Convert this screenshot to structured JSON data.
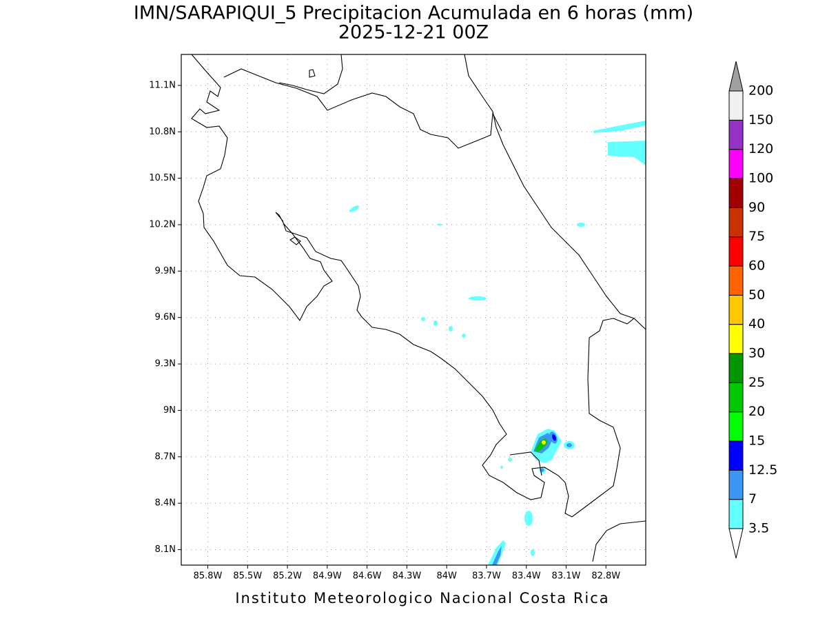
{
  "title": "IMN/SARAPIQUI_5 Precipitacion Acumulada en 6 horas (mm)",
  "subtitle": "2025-12-21 00Z",
  "footer": "Instituto Meteorologico Nacional Costa Rica",
  "map": {
    "lonlim": [
      -86.0,
      -82.5
    ],
    "latlim": [
      8.0,
      11.3
    ],
    "lon_ticks": [
      {
        "value": -85.8,
        "label": "85.8W"
      },
      {
        "value": -85.5,
        "label": "85.5W"
      },
      {
        "value": -85.2,
        "label": "85.2W"
      },
      {
        "value": -84.9,
        "label": "84.9W"
      },
      {
        "value": -84.6,
        "label": "84.6W"
      },
      {
        "value": -84.3,
        "label": "84.3W"
      },
      {
        "value": -84.0,
        "label": "84W"
      },
      {
        "value": -83.7,
        "label": "83.7W"
      },
      {
        "value": -83.4,
        "label": "83.4W"
      },
      {
        "value": -83.1,
        "label": "83.1W"
      },
      {
        "value": -82.8,
        "label": "82.8W"
      }
    ],
    "lat_ticks": [
      {
        "value": 11.1,
        "label": "11.1N"
      },
      {
        "value": 10.8,
        "label": "10.8N"
      },
      {
        "value": 10.5,
        "label": "10.5N"
      },
      {
        "value": 10.2,
        "label": "10.2N"
      },
      {
        "value": 9.9,
        "label": "9.9N"
      },
      {
        "value": 9.6,
        "label": "9.6N"
      },
      {
        "value": 9.3,
        "label": "9.3N"
      },
      {
        "value": 9.0,
        "label": "9N"
      },
      {
        "value": 8.7,
        "label": "8.7N"
      },
      {
        "value": 8.4,
        "label": "8.4N"
      },
      {
        "value": 8.1,
        "label": "8.1N"
      }
    ],
    "grid": true
  },
  "colorbar": {
    "levels": [
      3.5,
      7,
      12.5,
      15,
      20,
      25,
      30,
      40,
      50,
      60,
      75,
      90,
      100,
      120,
      150,
      200
    ],
    "colors": [
      "#64ffff",
      "#3c96f5",
      "#0000ff",
      "#00ff00",
      "#00c800",
      "#009600",
      "#ffff00",
      "#ffc800",
      "#ff6400",
      "#ff0000",
      "#c83200",
      "#a00000",
      "#ff00ff",
      "#9632c8",
      "#f0f0f0"
    ],
    "under_color": "#ffffff",
    "over_color": "#a0a0a0"
  }
}
